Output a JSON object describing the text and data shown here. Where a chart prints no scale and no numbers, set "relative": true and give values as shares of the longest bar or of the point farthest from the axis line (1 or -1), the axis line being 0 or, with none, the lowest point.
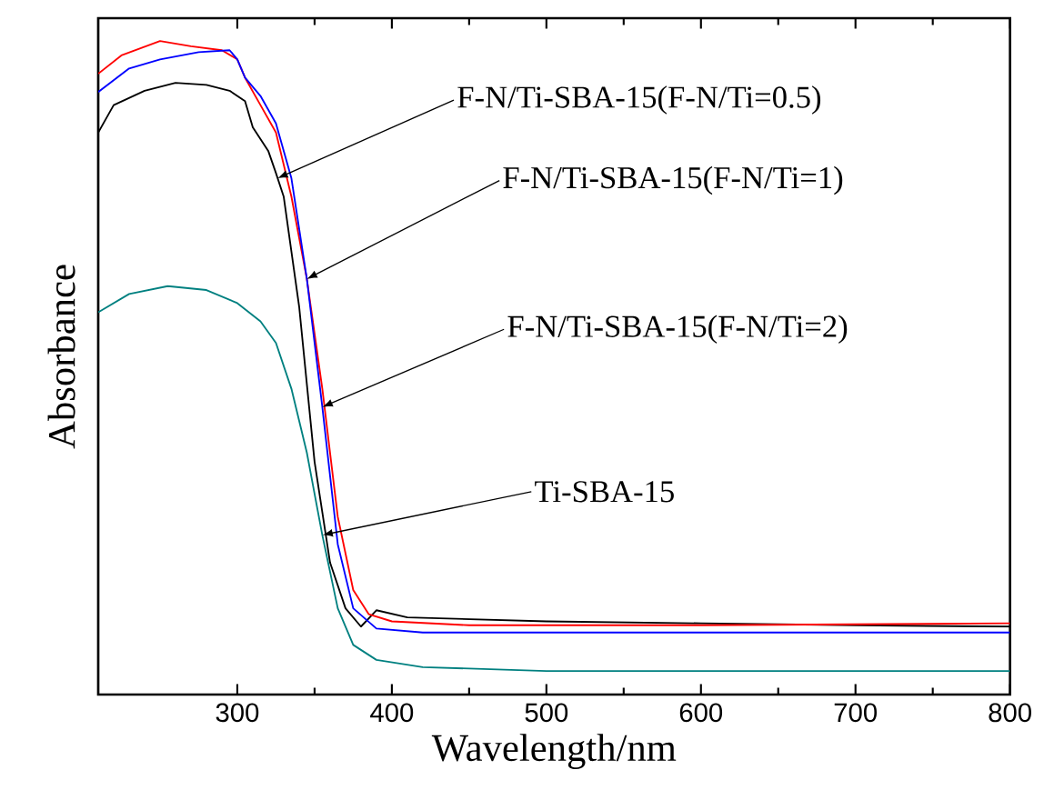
{
  "chart_data": {
    "type": "line",
    "xlabel": "Wavelength/nm",
    "ylabel": "Absorbance",
    "relative": true,
    "xlim": [
      210,
      800
    ],
    "xticks": [
      300,
      400,
      500,
      600,
      700,
      800
    ],
    "grid": false,
    "marker": "none",
    "line_style": "solid",
    "annotations": [
      {
        "text": "F-N/Ti-SBA-15(F-N/Ti=0.5)",
        "x": 326,
        "y": 0.79
      },
      {
        "text": "F-N/Ti-SBA-15(F-N/Ti=1)",
        "x": 345,
        "y": 0.636
      },
      {
        "text": "F-N/Ti-SBA-15(F-N/Ti=2)",
        "x": 355,
        "y": 0.44
      },
      {
        "text": "Ti-SBA-15",
        "x": 355,
        "y": 0.244
      }
    ],
    "series": [
      {
        "color": "#000000",
        "x": [
          210,
          220,
          240,
          260,
          280,
          295,
          305,
          310,
          320,
          325,
          330,
          340,
          350,
          360,
          370,
          380,
          390,
          410,
          500,
          600,
          700,
          800
        ],
        "values": [
          0.86,
          0.902,
          0.924,
          0.936,
          0.933,
          0.924,
          0.908,
          0.868,
          0.832,
          0.798,
          0.762,
          0.594,
          0.356,
          0.202,
          0.132,
          0.104,
          0.129,
          0.118,
          0.112,
          0.109,
          0.106,
          0.104
        ]
      },
      {
        "color": "#ff0000",
        "x": [
          210,
          225,
          250,
          270,
          290,
          300,
          305,
          315,
          325,
          335,
          345,
          355,
          365,
          375,
          385,
          400,
          450,
          600,
          800
        ],
        "values": [
          0.95,
          0.978,
          1.0,
          0.992,
          0.986,
          0.972,
          0.944,
          0.902,
          0.86,
          0.762,
          0.636,
          0.468,
          0.272,
          0.16,
          0.123,
          0.112,
          0.106,
          0.106,
          0.109
        ]
      },
      {
        "color": "#0000ff",
        "x": [
          210,
          230,
          250,
          275,
          295,
          300,
          305,
          315,
          325,
          335,
          345,
          355,
          365,
          375,
          390,
          420,
          800
        ],
        "values": [
          0.922,
          0.958,
          0.972,
          0.983,
          0.986,
          0.972,
          0.944,
          0.916,
          0.874,
          0.79,
          0.636,
          0.44,
          0.23,
          0.132,
          0.101,
          0.095,
          0.095
        ]
      },
      {
        "color": "#008080",
        "x": [
          210,
          230,
          255,
          280,
          300,
          315,
          325,
          335,
          345,
          355,
          365,
          375,
          390,
          420,
          500,
          800
        ],
        "values": [
          0.585,
          0.613,
          0.625,
          0.619,
          0.599,
          0.571,
          0.538,
          0.468,
          0.37,
          0.244,
          0.132,
          0.076,
          0.053,
          0.042,
          0.036,
          0.036
        ]
      }
    ]
  }
}
